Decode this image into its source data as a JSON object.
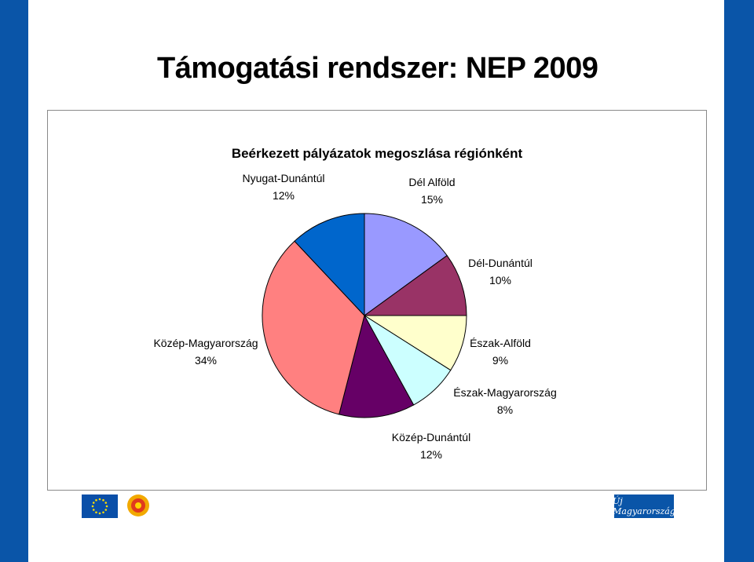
{
  "slide": {
    "title": "Támogatási rendszer: NEP 2009"
  },
  "logos": {
    "eu_flag_icon": "eu-flag-icon",
    "sun_logo_icon": "sun-emblem-icon",
    "uj_magyarorszag_logo_text": "Új Magyarország"
  },
  "colors": {
    "brand_blue": "#0a55a8"
  },
  "chart_data": {
    "type": "pie",
    "title": "Beérkezett pályázatok megoszlása régiónként",
    "start_angle": "top (12 o'clock), clockwise",
    "slices": [
      {
        "label": "Dél Alföld",
        "percent_label": "15%",
        "value": 15,
        "color": "#9999ff"
      },
      {
        "label": "Dél-Dunántúl",
        "percent_label": "10%",
        "value": 10,
        "color": "#993366"
      },
      {
        "label": "Észak-Alföld",
        "percent_label": "9%",
        "value": 9,
        "color": "#ffffcc"
      },
      {
        "label": "Észak-Magyarország",
        "percent_label": "8%",
        "value": 8,
        "color": "#ccffff"
      },
      {
        "label": "Közép-Dunántúl",
        "percent_label": "12%",
        "value": 12,
        "color": "#660066"
      },
      {
        "label": "Közép-Magyarország",
        "percent_label": "34%",
        "value": 34,
        "color": "#ff8080"
      },
      {
        "label": "Nyugat-Dunántúl",
        "percent_label": "12%",
        "value": 12,
        "color": "#0066cc"
      }
    ]
  }
}
